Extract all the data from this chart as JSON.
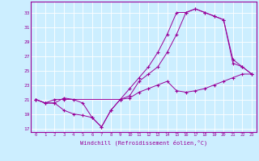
{
  "xlabel": "Windchill (Refroidissement éolien,°C)",
  "bg_color": "#cceeff",
  "grid_color": "#ffffff",
  "line_color": "#990099",
  "xlim": [
    -0.5,
    23.5
  ],
  "ylim": [
    16.5,
    34.5
  ],
  "xticks": [
    0,
    1,
    2,
    3,
    4,
    5,
    6,
    7,
    8,
    9,
    10,
    11,
    12,
    13,
    14,
    15,
    16,
    17,
    18,
    19,
    20,
    21,
    22,
    23
  ],
  "yticks": [
    17,
    19,
    21,
    23,
    25,
    27,
    29,
    31,
    33
  ],
  "line1_x": [
    0,
    1,
    2,
    3,
    4,
    5,
    6,
    7,
    8,
    9,
    10,
    11,
    12,
    13,
    14,
    15,
    16,
    17,
    18,
    19,
    20,
    21,
    22,
    23
  ],
  "line1_y": [
    21,
    20.5,
    20.5,
    21.2,
    21.0,
    20.5,
    18.5,
    17.2,
    19.5,
    21.0,
    21.2,
    22.0,
    22.5,
    23.0,
    23.5,
    22.2,
    22.0,
    22.2,
    22.5,
    23.0,
    23.5,
    24.0,
    24.5,
    24.5
  ],
  "line2_x": [
    0,
    1,
    2,
    3,
    4,
    5,
    6,
    7,
    8,
    9,
    10,
    11,
    12,
    13,
    14,
    15,
    16,
    17,
    18,
    19,
    20,
    21,
    22,
    23
  ],
  "line2_y": [
    21,
    20.5,
    20.5,
    19.5,
    19.0,
    18.8,
    18.5,
    17.2,
    19.5,
    21.0,
    21.5,
    23.5,
    24.5,
    25.5,
    27.5,
    30.0,
    33.0,
    33.5,
    33.0,
    32.5,
    32.0,
    26.0,
    25.5,
    24.5
  ],
  "line3_x": [
    0,
    1,
    2,
    3,
    9,
    10,
    11,
    12,
    13,
    14,
    15,
    16,
    17,
    18,
    19,
    20,
    21,
    22,
    23
  ],
  "line3_y": [
    21,
    20.5,
    21.0,
    21.0,
    21.0,
    22.5,
    24.0,
    25.5,
    27.5,
    30.0,
    33.0,
    33.0,
    33.5,
    33.0,
    32.5,
    32.0,
    26.5,
    25.5,
    24.5
  ]
}
